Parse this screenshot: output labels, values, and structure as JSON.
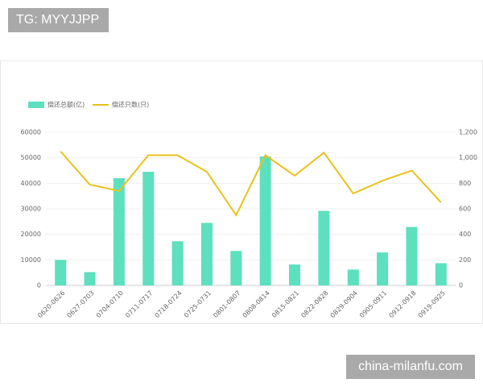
{
  "watermark_top": "TG: MYYJJPP",
  "watermark_bottom": "china-milanfu.com",
  "chart_data": {
    "type": "bar",
    "categories": [
      "0620-0626",
      "0627-0703",
      "0704-0710",
      "0711-0717",
      "0718-0724",
      "0725-0731",
      "0801-0807",
      "0808-0814",
      "0815-0821",
      "0822-0828",
      "0829-0904",
      "0905-0911",
      "0912-0918",
      "0919-0925"
    ],
    "series": [
      {
        "name": "偿还总额(亿)",
        "type": "bar",
        "color": "#5ce0be",
        "values": [
          10000,
          5200,
          42000,
          44500,
          17300,
          24500,
          13500,
          50500,
          8200,
          29200,
          6200,
          12900,
          22900,
          8700
        ]
      },
      {
        "name": "偿还只数(只)",
        "type": "line",
        "axis": "y2",
        "color": "#e8c21c",
        "values": [
          1050,
          790,
          740,
          1020,
          1020,
          890,
          550,
          1020,
          860,
          1040,
          720,
          820,
          900,
          650
        ]
      }
    ],
    "ylim": [
      0,
      60000
    ],
    "yticks": [
      0,
      10000,
      20000,
      30000,
      40000,
      50000,
      60000
    ],
    "y2lim": [
      0,
      1200
    ],
    "y2ticks": [
      0,
      200,
      400,
      600,
      800,
      {
        "value": 1000,
        "label": "1,000"
      },
      {
        "value": 1200,
        "label": "1,200"
      }
    ],
    "grid": true,
    "legend": "top-left"
  }
}
